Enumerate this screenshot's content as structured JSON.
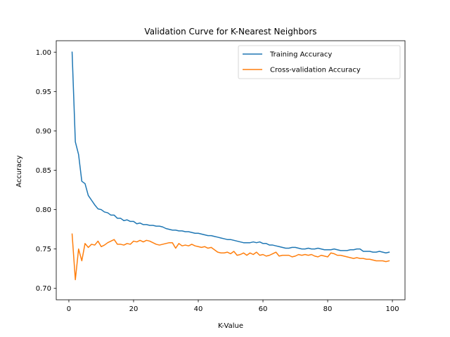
{
  "chart_data": {
    "type": "line",
    "title": "Validation Curve for K-Nearest Neighbors",
    "xlabel": "K-Value",
    "ylabel": "Accuracy",
    "xlim": [
      -3.9,
      103.9
    ],
    "ylim": [
      0.6855,
      1.0145
    ],
    "xticks": [
      0,
      20,
      40,
      60,
      80,
      100
    ],
    "xtick_labels": [
      "0",
      "20",
      "40",
      "60",
      "80",
      "100"
    ],
    "yticks": [
      0.7,
      0.75,
      0.8,
      0.85,
      0.9,
      0.95,
      1.0
    ],
    "ytick_labels": [
      "0.70",
      "0.75",
      "0.80",
      "0.85",
      "0.90",
      "0.95",
      "1.00"
    ],
    "grid": false,
    "legend_position": "top-right",
    "x_start": 1,
    "x_step": 1,
    "series": [
      {
        "name": "Training Accuracy",
        "color": "#1f77b4",
        "values": [
          1.0,
          0.886,
          0.87,
          0.836,
          0.833,
          0.818,
          0.812,
          0.806,
          0.801,
          0.8,
          0.797,
          0.796,
          0.793,
          0.793,
          0.789,
          0.789,
          0.786,
          0.787,
          0.785,
          0.785,
          0.782,
          0.783,
          0.781,
          0.781,
          0.78,
          0.78,
          0.779,
          0.779,
          0.778,
          0.776,
          0.775,
          0.774,
          0.774,
          0.773,
          0.773,
          0.772,
          0.772,
          0.771,
          0.77,
          0.77,
          0.769,
          0.768,
          0.767,
          0.767,
          0.766,
          0.765,
          0.764,
          0.763,
          0.762,
          0.762,
          0.761,
          0.76,
          0.759,
          0.758,
          0.758,
          0.758,
          0.759,
          0.758,
          0.759,
          0.757,
          0.757,
          0.755,
          0.755,
          0.754,
          0.753,
          0.752,
          0.751,
          0.751,
          0.752,
          0.752,
          0.751,
          0.75,
          0.75,
          0.751,
          0.75,
          0.75,
          0.751,
          0.75,
          0.749,
          0.749,
          0.749,
          0.75,
          0.749,
          0.748,
          0.748,
          0.748,
          0.749,
          0.749,
          0.75,
          0.75,
          0.747,
          0.747,
          0.747,
          0.746,
          0.746,
          0.747,
          0.746,
          0.745,
          0.746
        ]
      },
      {
        "name": "Cross-validation Accuracy",
        "color": "#ff7f0e",
        "values": [
          0.769,
          0.711,
          0.75,
          0.735,
          0.757,
          0.752,
          0.756,
          0.755,
          0.76,
          0.753,
          0.755,
          0.758,
          0.76,
          0.762,
          0.756,
          0.756,
          0.755,
          0.757,
          0.756,
          0.76,
          0.759,
          0.761,
          0.759,
          0.761,
          0.76,
          0.758,
          0.756,
          0.755,
          0.756,
          0.757,
          0.758,
          0.758,
          0.751,
          0.757,
          0.754,
          0.755,
          0.754,
          0.756,
          0.754,
          0.753,
          0.752,
          0.753,
          0.751,
          0.752,
          0.749,
          0.746,
          0.745,
          0.745,
          0.746,
          0.744,
          0.747,
          0.742,
          0.743,
          0.745,
          0.742,
          0.745,
          0.743,
          0.746,
          0.742,
          0.743,
          0.741,
          0.742,
          0.744,
          0.746,
          0.741,
          0.742,
          0.742,
          0.742,
          0.74,
          0.741,
          0.743,
          0.742,
          0.743,
          0.742,
          0.743,
          0.741,
          0.74,
          0.742,
          0.741,
          0.74,
          0.745,
          0.744,
          0.742,
          0.742,
          0.741,
          0.74,
          0.739,
          0.738,
          0.739,
          0.738,
          0.738,
          0.737,
          0.737,
          0.736,
          0.735,
          0.735,
          0.735,
          0.734,
          0.735
        ]
      }
    ]
  }
}
